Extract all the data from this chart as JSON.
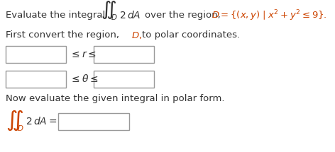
{
  "bg_color": "#ffffff",
  "text_color": "#333333",
  "orange_color": "#cc4400",
  "figsize": [
    4.72,
    2.15
  ],
  "dpi": 100,
  "line1_text": "Evaluate the integral",
  "line1_integral": "$\\iint_D$",
  "line1_2dA": "$2\\,dA$",
  "line1_over": "over the region,",
  "line1_D": "$D = \\{(x, y) \\mid x^2 + y^2 \\leq 9\\}.$",
  "line2_a": "First convert the region,",
  "line2_D": "$D,$",
  "line2_b": "to polar coordinates.",
  "line3_ineq": "$\\leq r \\leq$",
  "line4_ineq": "$\\leq \\theta \\leq$",
  "line5": "Now evaluate the given integral in polar form.",
  "line6_integral": "$\\iint_D$",
  "line6_rest": "$2\\,dA =$"
}
